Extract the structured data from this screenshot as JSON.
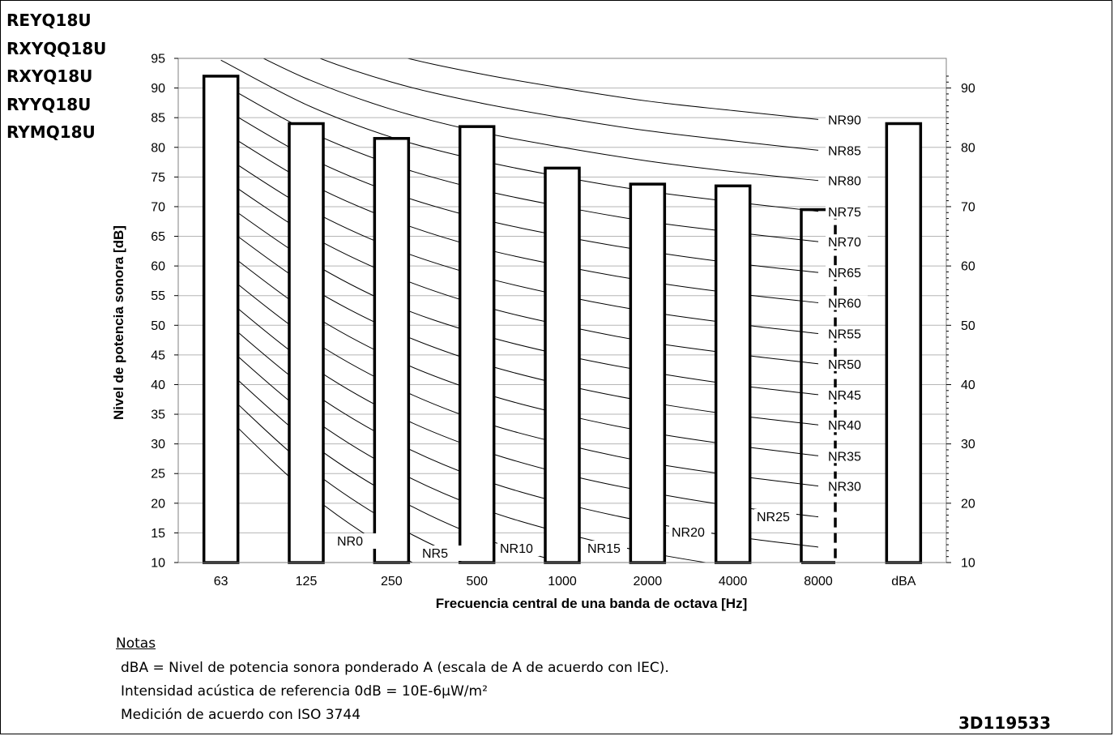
{
  "models": [
    "REYQ18U",
    "RXYQQ18U",
    "RXYQ18U",
    "RYYQ18U",
    "RYMQ18U"
  ],
  "notes": {
    "heading": "Notas",
    "lines": [
      "dBA = Nivel de potencia sonora ponderado A (escala de A de acuerdo con IEC).",
      "Intensidad acústica de referencia 0dB = 10E-6µW/m²",
      "Medición de acuerdo con ISO 3744"
    ]
  },
  "doc_id": "3D119533",
  "chart_data": {
    "type": "bar",
    "title": "",
    "xlabel": "Frecuencia central de una banda de octava [Hz]",
    "ylabel": "Nivel de potencia sonora [dB]",
    "ylim": [
      10,
      95
    ],
    "yticks_left": [
      10,
      15,
      20,
      25,
      30,
      35,
      40,
      45,
      50,
      55,
      60,
      65,
      70,
      75,
      80,
      85,
      90,
      95
    ],
    "yticks_right": [
      10,
      20,
      30,
      40,
      50,
      60,
      70,
      80,
      90
    ],
    "grid": true,
    "categories": [
      "63",
      "125",
      "250",
      "500",
      "1000",
      "2000",
      "4000",
      "8000",
      "dBA"
    ],
    "values": [
      92,
      84,
      81.5,
      83.5,
      76.5,
      73.8,
      73.5,
      69.5,
      84
    ],
    "nr_curves": [
      {
        "name": "NR0",
        "values": [
          35.5,
          22,
          12,
          4.8,
          0,
          -3.5,
          -6.1,
          -8
        ]
      },
      {
        "name": "NR5",
        "values": [
          39.4,
          26.3,
          16.6,
          9.7,
          5,
          1.6,
          -1,
          -2.8
        ]
      },
      {
        "name": "NR10",
        "values": [
          43.4,
          30.7,
          21.3,
          14.5,
          10,
          6.6,
          4.2,
          2.3
        ]
      },
      {
        "name": "NR15",
        "values": [
          47.3,
          35,
          25.9,
          19.4,
          15,
          11.7,
          9.3,
          7.4
        ]
      },
      {
        "name": "NR20",
        "values": [
          51.3,
          39.4,
          30.6,
          24.3,
          20,
          16.8,
          14.4,
          12.6
        ]
      },
      {
        "name": "NR25",
        "values": [
          55.2,
          43.7,
          35.2,
          29.2,
          25,
          21.9,
          19.5,
          17.7
        ]
      },
      {
        "name": "NR30",
        "values": [
          59.2,
          48.1,
          39.9,
          34,
          30,
          26.9,
          24.7,
          22.9
        ]
      },
      {
        "name": "NR35",
        "values": [
          63.1,
          52.4,
          44.5,
          38.9,
          35,
          32,
          29.8,
          28
        ]
      },
      {
        "name": "NR40",
        "values": [
          67.1,
          56.8,
          49.2,
          43.8,
          40,
          37.1,
          34.9,
          33.2
        ]
      },
      {
        "name": "NR45",
        "values": [
          71,
          61.1,
          53.6,
          48.6,
          45,
          42.2,
          40,
          38.3
        ]
      },
      {
        "name": "NR50",
        "values": [
          75,
          65.5,
          58.5,
          53.5,
          50,
          47.2,
          45.2,
          43.5
        ]
      },
      {
        "name": "NR55",
        "values": [
          78.9,
          69.8,
          63.1,
          58.4,
          55,
          52.3,
          50.3,
          48.6
        ]
      },
      {
        "name": "NR60",
        "values": [
          82.9,
          74.2,
          67.8,
          63.2,
          60,
          57.4,
          55.4,
          53.8
        ]
      },
      {
        "name": "NR65",
        "values": [
          86.8,
          78.5,
          72.4,
          68.1,
          65,
          62.5,
          60.5,
          58.9
        ]
      },
      {
        "name": "NR70",
        "values": [
          90.8,
          82.9,
          77.1,
          73,
          70,
          67.5,
          65.7,
          64.1
        ]
      },
      {
        "name": "NR75",
        "values": [
          94.7,
          87.2,
          81.7,
          77.9,
          75,
          72.6,
          70.8,
          69.2
        ]
      },
      {
        "name": "NR80",
        "values": [
          98.6,
          91.6,
          86.4,
          82.7,
          80,
          77.7,
          75.9,
          74.4
        ]
      },
      {
        "name": "NR85",
        "values": [
          102.6,
          95.9,
          91,
          87.6,
          85,
          82.8,
          81.1,
          79.5
        ]
      },
      {
        "name": "NR90",
        "values": [
          106.5,
          100.3,
          95.7,
          92.5,
          90,
          87.8,
          86.2,
          84.7
        ]
      }
    ]
  }
}
